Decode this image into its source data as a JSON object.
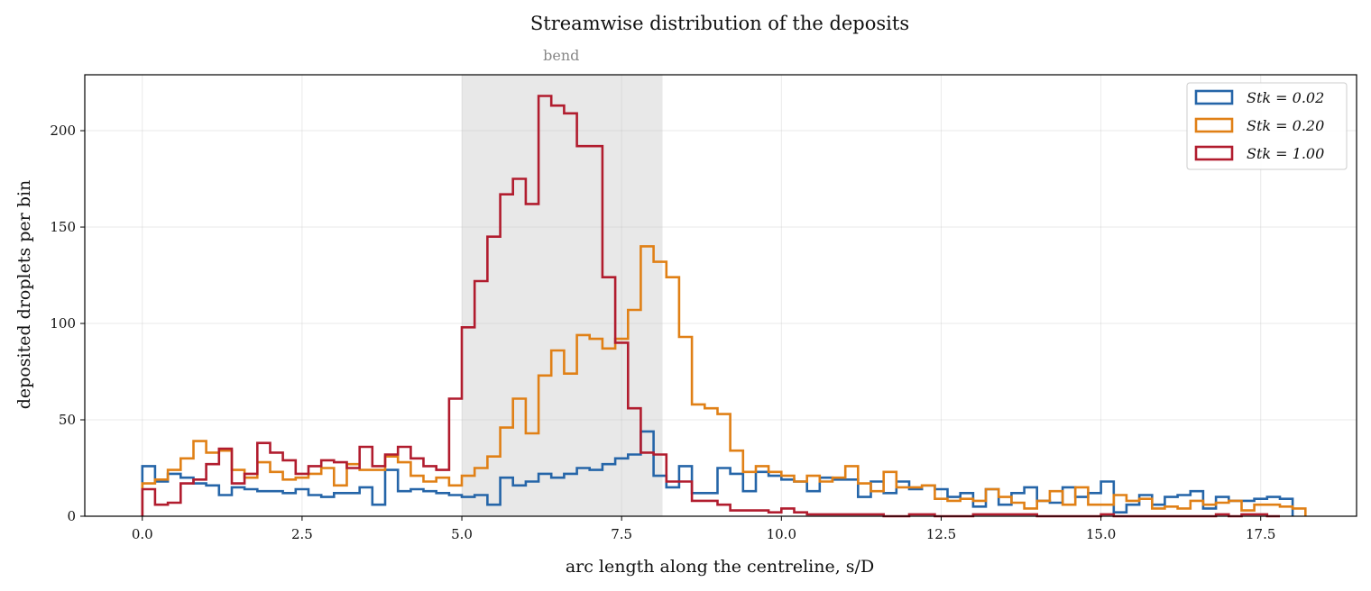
{
  "chart_data": {
    "type": "histogram",
    "title": "Streamwise distribution of the deposits",
    "xlabel": "arc length along the centreline, s/D",
    "ylabel": "deposited droplets per bin",
    "xlim": [
      -0.9,
      19.0
    ],
    "ylim": [
      0,
      229
    ],
    "xticks": [
      0.0,
      2.5,
      5.0,
      7.5,
      10.0,
      12.5,
      15.0,
      17.5
    ],
    "xtick_labels": [
      "0.0",
      "2.5",
      "5.0",
      "7.5",
      "10.0",
      "12.5",
      "15.0",
      "17.5"
    ],
    "yticks": [
      0,
      50,
      100,
      150,
      200
    ],
    "ytick_labels": [
      "0",
      "50",
      "100",
      "150",
      "200"
    ],
    "grid": true,
    "legend_position": "top-right",
    "bin_start": 0.0,
    "bin_width": 0.2,
    "shaded_region": {
      "x0": 5.0,
      "x1": 8.14,
      "label": "bend",
      "color": "#e8e8e8"
    },
    "series": [
      {
        "name": "Stk = 0.02",
        "color": "#2565a8",
        "values": [
          26,
          18,
          22,
          20,
          17,
          16,
          11,
          15,
          14,
          13,
          13,
          12,
          14,
          11,
          10,
          12,
          12,
          15,
          6,
          24,
          13,
          14,
          13,
          12,
          11,
          10,
          11,
          6,
          20,
          16,
          18,
          22,
          20,
          22,
          25,
          24,
          27,
          30,
          32,
          44,
          21,
          15,
          26,
          12,
          12,
          25,
          22,
          13,
          23,
          21,
          19,
          18,
          13,
          20,
          19,
          19,
          10,
          18,
          12,
          18,
          14,
          16,
          14,
          10,
          12,
          5,
          14,
          6,
          12,
          15,
          8,
          7,
          15,
          10,
          12,
          18,
          2,
          6,
          11,
          6,
          10,
          11,
          13,
          4,
          10,
          8,
          8,
          9,
          10,
          9
        ]
      },
      {
        "name": "Stk = 0.20",
        "color": "#e08016",
        "values": [
          17,
          19,
          24,
          30,
          39,
          33,
          34,
          24,
          20,
          28,
          23,
          19,
          20,
          22,
          25,
          16,
          27,
          24,
          24,
          31,
          28,
          21,
          18,
          20,
          16,
          21,
          25,
          31,
          46,
          61,
          43,
          73,
          86,
          74,
          94,
          92,
          87,
          92,
          107,
          140,
          132,
          124,
          93,
          58,
          56,
          53,
          34,
          23,
          26,
          23,
          21,
          18,
          21,
          18,
          20,
          26,
          17,
          13,
          23,
          15,
          15,
          16,
          9,
          8,
          9,
          8,
          14,
          10,
          7,
          4,
          8,
          13,
          6,
          15,
          6,
          6,
          11,
          8,
          9,
          4,
          5,
          4,
          8,
          6,
          7,
          8,
          3,
          6,
          6,
          5,
          4
        ]
      },
      {
        "name": "Stk = 1.00",
        "color": "#b11c2e",
        "values": [
          14,
          6,
          7,
          17,
          19,
          27,
          35,
          17,
          22,
          38,
          33,
          29,
          22,
          26,
          29,
          28,
          25,
          36,
          26,
          32,
          36,
          30,
          26,
          24,
          61,
          98,
          122,
          145,
          167,
          175,
          162,
          218,
          213,
          209,
          192,
          192,
          124,
          90,
          56,
          33,
          32,
          18,
          18,
          8,
          8,
          6,
          3,
          3,
          3,
          2,
          4,
          2,
          1,
          1,
          1,
          1,
          1,
          1,
          0,
          0,
          1,
          1,
          0,
          0,
          0,
          1,
          1,
          1,
          1,
          1,
          0,
          0,
          0,
          0,
          0,
          1,
          0,
          0,
          0,
          0,
          0,
          0,
          0,
          0,
          1,
          0,
          1,
          1,
          0
        ]
      }
    ]
  }
}
